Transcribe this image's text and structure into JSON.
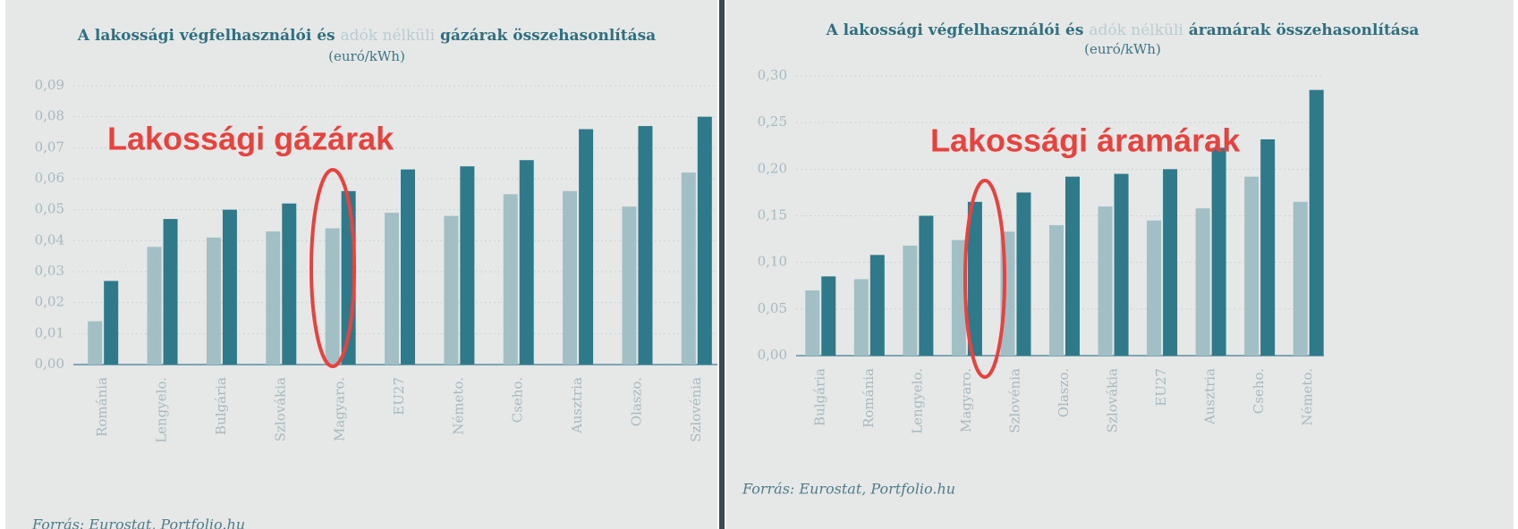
{
  "chart_data": [
    {
      "type": "bar",
      "title_parts": [
        "A lakossági végfelhasználói és",
        "adók nélküli",
        "gázárak összehasonlítása"
      ],
      "subtitle": "(euró/kWh)",
      "annotation": "Lakossági gázárak",
      "source": "Forrás: Eurostat, Portfolio.hu",
      "categories": [
        "Románia",
        "Lengyelo.",
        "Bulgária",
        "Szlovákia",
        "Magyaro.",
        "EU27",
        "Németo.",
        "Cseho.",
        "Ausztria",
        "Olaszo.",
        "Szlovénia"
      ],
      "series": [
        {
          "color": "#a3bfc6",
          "values": [
            0.014,
            0.038,
            0.041,
            0.043,
            0.044,
            0.049,
            0.048,
            0.055,
            0.056,
            0.051,
            0.062
          ]
        },
        {
          "color": "#2e7a8a",
          "values": [
            0.027,
            0.047,
            0.05,
            0.052,
            0.056,
            0.063,
            0.064,
            0.066,
            0.076,
            0.077,
            0.08
          ]
        }
      ],
      "ylim": [
        0,
        0.09
      ],
      "yticks": [
        {
          "value": 0,
          "label": "0,00"
        },
        {
          "value": 0.01,
          "label": "0,01"
        },
        {
          "value": 0.02,
          "label": "0,02"
        },
        {
          "value": 0.03,
          "label": "0,03"
        },
        {
          "value": 0.04,
          "label": "0,04"
        },
        {
          "value": 0.05,
          "label": "0,05"
        },
        {
          "value": 0.06,
          "label": "0,06"
        },
        {
          "value": 0.07,
          "label": "0,07"
        },
        {
          "value": 0.08,
          "label": "0,08"
        },
        {
          "value": 0.09,
          "label": "0,09"
        }
      ],
      "grid": true
    },
    {
      "type": "bar",
      "title_parts": [
        "A lakossági végfelhasználói és",
        "adók nélküli",
        "áramárak összehasonlítása"
      ],
      "subtitle": "(euró/kWh)",
      "annotation": "Lakossági áramárak",
      "source": "Forrás: Eurostat, Portfolio.hu",
      "categories": [
        "Bulgária",
        "Románia",
        "Lengyelo.",
        "Magyaro.",
        "Szlovénia",
        "Olaszo.",
        "Szlovákia",
        "EU27",
        "Ausztria",
        "Cseho.",
        "Németo."
      ],
      "series": [
        {
          "color": "#a3bfc6",
          "values": [
            0.07,
            0.082,
            0.118,
            0.124,
            0.133,
            0.14,
            0.16,
            0.145,
            0.158,
            0.192,
            0.165
          ]
        },
        {
          "color": "#2e7a8a",
          "values": [
            0.085,
            0.108,
            0.15,
            0.165,
            0.175,
            0.192,
            0.195,
            0.2,
            0.223,
            0.232,
            0.285
          ]
        }
      ],
      "ylim": [
        0,
        0.3
      ],
      "yticks": [
        {
          "value": 0,
          "label": "0,00"
        },
        {
          "value": 0.05,
          "label": "0,05"
        },
        {
          "value": 0.1,
          "label": "0,10"
        },
        {
          "value": 0.15,
          "label": "0,15"
        },
        {
          "value": 0.2,
          "label": "0,20"
        },
        {
          "value": 0.25,
          "label": "0,25"
        },
        {
          "value": 0.3,
          "label": "0,30"
        }
      ],
      "grid": true
    }
  ]
}
